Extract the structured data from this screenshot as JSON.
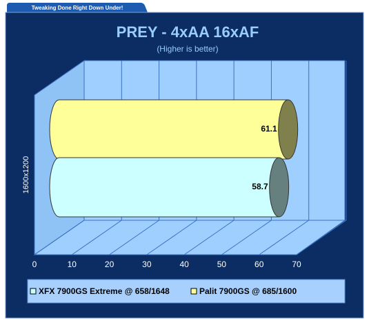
{
  "watermark": "Tweaking Done Right Down Under!",
  "chart_data": {
    "type": "bar",
    "orientation": "horizontal",
    "title": "PREY - 4xAA 16xAF",
    "subtitle": "(Higher is better)",
    "categories": [
      "1600x1200"
    ],
    "series": [
      {
        "name": "XFX 7900GS Extreme @ 658/1648",
        "color": "#ccffff",
        "values": [
          58.7
        ]
      },
      {
        "name": "Palit 7900GS @ 685/1600",
        "color": "#ffff99",
        "values": [
          61.1
        ]
      }
    ],
    "xlim": [
      0,
      70
    ],
    "xticks": [
      0,
      10,
      20,
      30,
      40,
      50,
      60,
      70
    ],
    "grid": true,
    "legend": "bottom"
  }
}
